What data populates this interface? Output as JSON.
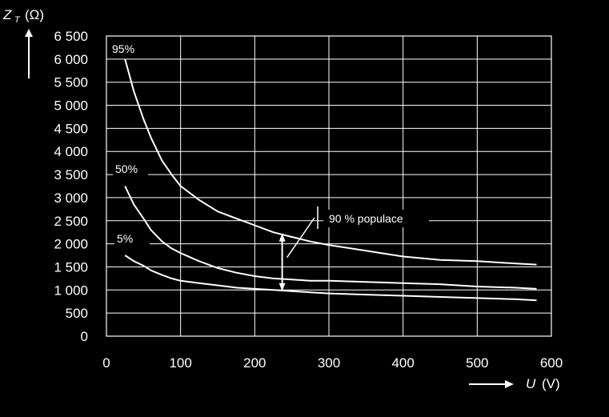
{
  "chart_data": {
    "type": "line",
    "ylabel_symbol": "Z",
    "ylabel_sub": "T",
    "ylabel_unit": "(Ω)",
    "xlabel_symbol": "U",
    "xlabel_unit": "(V)",
    "xlim": [
      0,
      600
    ],
    "ylim": [
      0,
      6500
    ],
    "grid": true,
    "x_ticks": [
      0,
      100,
      200,
      300,
      400,
      500,
      600
    ],
    "x_tick_labels": [
      "0",
      "100",
      "200",
      "300",
      "400",
      "500",
      "600"
    ],
    "y_ticks": [
      0,
      500,
      1000,
      1500,
      2000,
      2500,
      3000,
      3500,
      4000,
      4500,
      5000,
      5500,
      6000,
      6500
    ],
    "y_tick_labels": [
      "0",
      "500",
      "1 000",
      "1 500",
      "2 000",
      "2 500",
      "3 000",
      "3 500",
      "4 000",
      "4 500",
      "5 000",
      "5 500",
      "6 000",
      "6 500"
    ],
    "series": [
      {
        "name": "95%",
        "x": [
          25,
          37,
          50,
          60,
          75,
          88,
          100,
          125,
          150,
          175,
          200,
          225,
          250,
          275,
          300,
          350,
          400,
          450,
          500,
          550,
          580
        ],
        "y": [
          6000,
          5300,
          4700,
          4300,
          3800,
          3500,
          3250,
          2950,
          2700,
          2550,
          2400,
          2250,
          2150,
          2050,
          1975,
          1850,
          1725,
          1650,
          1625,
          1575,
          1550
        ]
      },
      {
        "name": "50%",
        "x": [
          25,
          37,
          50,
          60,
          75,
          88,
          100,
          125,
          150,
          175,
          200,
          225,
          250,
          275,
          300,
          350,
          400,
          450,
          500,
          550,
          580
        ],
        "y": [
          3250,
          2850,
          2550,
          2300,
          2050,
          1900,
          1800,
          1625,
          1475,
          1375,
          1300,
          1250,
          1225,
          1200,
          1200,
          1175,
          1150,
          1125,
          1075,
          1050,
          1025
        ]
      },
      {
        "name": "5%",
        "x": [
          25,
          37,
          50,
          60,
          75,
          88,
          100,
          125,
          150,
          175,
          200,
          225,
          250,
          275,
          300,
          350,
          400,
          450,
          500,
          550,
          580
        ],
        "y": [
          1750,
          1625,
          1525,
          1425,
          1325,
          1250,
          1200,
          1150,
          1100,
          1050,
          1025,
          1000,
          975,
          950,
          925,
          900,
          875,
          850,
          825,
          800,
          775
        ]
      }
    ],
    "annotation": {
      "text": "90 % populace",
      "x": 237,
      "y_low": 975,
      "y_high": 2225
    }
  }
}
